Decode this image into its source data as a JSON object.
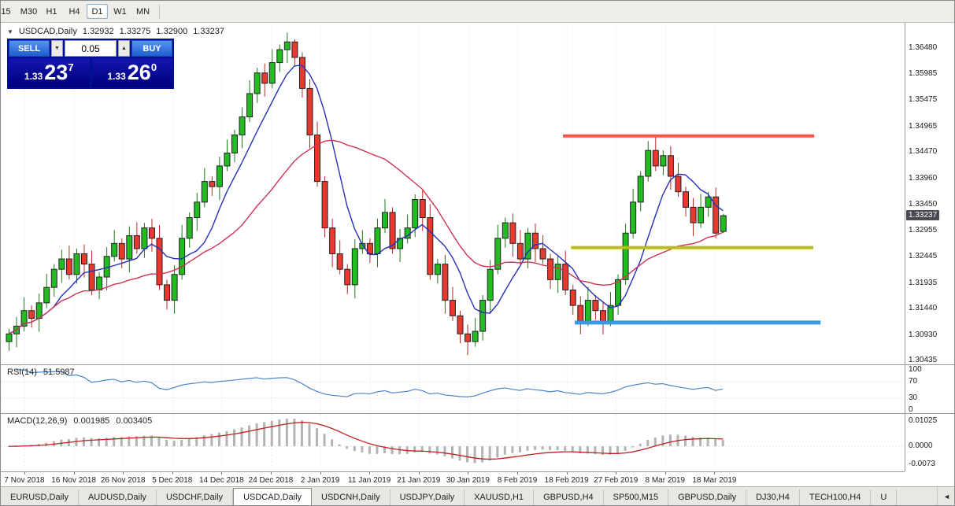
{
  "toolbar": {
    "timeframes": [
      {
        "label": "15",
        "active": false
      },
      {
        "label": "M30",
        "active": false
      },
      {
        "label": "H1",
        "active": false
      },
      {
        "label": "H4",
        "active": false
      },
      {
        "label": "D1",
        "active": true
      },
      {
        "label": "W1",
        "active": false
      },
      {
        "label": "MN",
        "active": false
      }
    ]
  },
  "icons": {
    "one_click_toggle": "▼",
    "spinner_down": "▼",
    "spinner_up": "▲",
    "tab_scroll_left": "◄"
  },
  "chart": {
    "header": {
      "title": "USDCAD,Daily",
      "open": "1.32932",
      "high": "1.33275",
      "low": "1.32900",
      "close": "1.33237"
    },
    "current_price": "1.33237",
    "trade_panel": {
      "sell_label": "SELL",
      "buy_label": "BUY",
      "volume": "0.05",
      "sell_price": {
        "prefix": "1.33",
        "big": "23",
        "sup": "7"
      },
      "buy_price": {
        "prefix": "1.33",
        "big": "26",
        "sup": "0"
      }
    }
  },
  "rsi": {
    "label": "RSI(14)",
    "value": "51.5987"
  },
  "macd": {
    "label": "MACD(12,26,9)",
    "value": "0.001985",
    "signal": "0.003405"
  },
  "tabs": [
    {
      "label": "EURUSD,Daily",
      "active": false
    },
    {
      "label": "AUDUSD,Daily",
      "active": false
    },
    {
      "label": "USDCHF,Daily",
      "active": false
    },
    {
      "label": "USDCAD,Daily",
      "active": true
    },
    {
      "label": "USDCNH,Daily",
      "active": false
    },
    {
      "label": "USDJPY,Daily",
      "active": false
    },
    {
      "label": "XAUUSD,H1",
      "active": false
    },
    {
      "label": "GBPUSD,H4",
      "active": false
    },
    {
      "label": "SP500,M15",
      "active": false
    },
    {
      "label": "GBPUSD,Daily",
      "active": false
    },
    {
      "label": "DJ30,H4",
      "active": false
    },
    {
      "label": "TECH100,H4",
      "active": false
    },
    {
      "label": "U",
      "active": false
    }
  ],
  "colors": {
    "candle_up": "#22bb22",
    "candle_down": "#e8392f",
    "candle_border": "#222222",
    "wick_up": "#1b7a1b",
    "wick_down": "#b32b22",
    "ma_fast": "#2430b8",
    "ma_slow": "#cc3355",
    "grid": "#e2e2e2",
    "level_dotted": "#cfcfcf",
    "rsi_line": "#4a86c8",
    "macd_hist": "#b3b3b3",
    "macd_signal": "#bb2222",
    "buy_sell_button": "#2a6de0",
    "price_panel": "#0a0a96",
    "price_tag_bg": "#4a4a52"
  },
  "chart_data": {
    "type": "candlestick",
    "symbol": "USDCAD",
    "timeframe": "Daily",
    "last_bar": {
      "open": 1.32932,
      "high": 1.33275,
      "low": 1.329,
      "close": 1.33237
    },
    "ylim": [
      1.3036,
      1.3697
    ],
    "y_tick_labels": [
      "1.36480",
      "1.35985",
      "1.35475",
      "1.34965",
      "1.34470",
      "1.33960",
      "1.33450",
      "1.32955",
      "1.32445",
      "1.31935",
      "1.31440",
      "1.30930",
      "1.30435"
    ],
    "x_tick_labels": [
      "7 Nov 2018",
      "16 Nov 2018",
      "26 Nov 2018",
      "5 Dec 2018",
      "14 Dec 2018",
      "24 Dec 2018",
      "2 Jan 2019",
      "11 Jan 2019",
      "21 Jan 2019",
      "30 Jan 2019",
      "8 Feb 2019",
      "18 Feb 2019",
      "27 Feb 2019",
      "8 Mar 2019",
      "18 Mar 2019"
    ],
    "ma_fast_period": 7,
    "ma_slow_period": 21,
    "hlines": [
      {
        "name": "resistance-line",
        "price": 1.3478,
        "color": "#f4564a",
        "width": 4,
        "x1": 0.622,
        "x2": 0.9
      },
      {
        "name": "mid-support-line",
        "price": 1.3262,
        "color": "#b9bd14",
        "width": 4,
        "x1": 0.631,
        "x2": 0.899
      },
      {
        "name": "support-line",
        "price": 1.3117,
        "color": "#3a9ae0",
        "width": 5,
        "x1": 0.635,
        "x2": 0.907
      }
    ],
    "rsi": {
      "period": 14,
      "value": 51.5987,
      "levels": [
        70,
        30
      ],
      "axis_labels": [
        "100",
        "70",
        "30",
        "0"
      ],
      "range": [
        0,
        100
      ]
    },
    "macd": {
      "fast": 12,
      "slow": 26,
      "signal_period": 9,
      "value": 0.001985,
      "signal_value": 0.003405,
      "axis_labels": [
        "0.01025",
        "0.0000",
        "-0.0073"
      ],
      "range": [
        -0.0073,
        0.01025
      ]
    },
    "ohlc": [
      [
        1.308,
        1.3105,
        1.3062,
        1.3095
      ],
      [
        1.3095,
        1.3128,
        1.3069,
        1.311
      ],
      [
        1.311,
        1.3166,
        1.31,
        1.314
      ],
      [
        1.314,
        1.315,
        1.3107,
        1.3125
      ],
      [
        1.3125,
        1.3173,
        1.3099,
        1.3155
      ],
      [
        1.3155,
        1.3211,
        1.3145,
        1.3185
      ],
      [
        1.3185,
        1.323,
        1.3167,
        1.322
      ],
      [
        1.322,
        1.3258,
        1.3194,
        1.324
      ],
      [
        1.324,
        1.3266,
        1.32,
        1.321
      ],
      [
        1.321,
        1.326,
        1.3192,
        1.325
      ],
      [
        1.325,
        1.3268,
        1.3204,
        1.323
      ],
      [
        1.323,
        1.3256,
        1.317,
        1.318
      ],
      [
        1.318,
        1.3215,
        1.3162,
        1.3205
      ],
      [
        1.3205,
        1.3263,
        1.3179,
        1.3245
      ],
      [
        1.3245,
        1.3296,
        1.3235,
        1.327
      ],
      [
        1.327,
        1.328,
        1.3222,
        1.324
      ],
      [
        1.324,
        1.3303,
        1.3214,
        1.3285
      ],
      [
        1.3285,
        1.3311,
        1.325,
        1.326
      ],
      [
        1.326,
        1.331,
        1.3242,
        1.33
      ],
      [
        1.33,
        1.3318,
        1.3254,
        1.328
      ],
      [
        1.328,
        1.3306,
        1.318,
        1.319
      ],
      [
        1.319,
        1.32,
        1.3142,
        1.316
      ],
      [
        1.316,
        1.3228,
        1.3134,
        1.321
      ],
      [
        1.321,
        1.3306,
        1.32,
        1.328
      ],
      [
        1.328,
        1.333,
        1.3262,
        1.332
      ],
      [
        1.332,
        1.3368,
        1.3294,
        1.335
      ],
      [
        1.335,
        1.3416,
        1.334,
        1.339
      ],
      [
        1.339,
        1.34,
        1.3362,
        1.338
      ],
      [
        1.338,
        1.3438,
        1.3354,
        1.342
      ],
      [
        1.342,
        1.3471,
        1.341,
        1.3445
      ],
      [
        1.3445,
        1.349,
        1.3427,
        1.348
      ],
      [
        1.348,
        1.3533,
        1.3454,
        1.3515
      ],
      [
        1.3515,
        1.3586,
        1.3505,
        1.356
      ],
      [
        1.356,
        1.361,
        1.3542,
        1.36
      ],
      [
        1.36,
        1.3618,
        1.3554,
        1.358
      ],
      [
        1.358,
        1.3646,
        1.357,
        1.362
      ],
      [
        1.362,
        1.3655,
        1.3602,
        1.3645
      ],
      [
        1.3645,
        1.3678,
        1.3619,
        1.366
      ],
      [
        1.366,
        1.3665,
        1.3615,
        1.363
      ],
      [
        1.363,
        1.364,
        1.3552,
        1.357
      ],
      [
        1.357,
        1.3588,
        1.3454,
        1.348
      ],
      [
        1.348,
        1.3506,
        1.338,
        1.339
      ],
      [
        1.339,
        1.34,
        1.3282,
        1.33
      ],
      [
        1.33,
        1.3318,
        1.3224,
        1.325
      ],
      [
        1.325,
        1.3276,
        1.321,
        1.322
      ],
      [
        1.322,
        1.323,
        1.3172,
        1.319
      ],
      [
        1.319,
        1.3278,
        1.3164,
        1.326
      ],
      [
        1.326,
        1.3296,
        1.325,
        1.327
      ],
      [
        1.327,
        1.328,
        1.3232,
        1.325
      ],
      [
        1.325,
        1.3318,
        1.3224,
        1.33
      ],
      [
        1.33,
        1.3356,
        1.329,
        1.333
      ],
      [
        1.333,
        1.334,
        1.325,
        1.326
      ],
      [
        1.326,
        1.3298,
        1.3234,
        1.328
      ],
      [
        1.328,
        1.3326,
        1.327,
        1.33
      ],
      [
        1.33,
        1.3365,
        1.3282,
        1.3355
      ],
      [
        1.3355,
        1.3373,
        1.3294,
        1.332
      ],
      [
        1.332,
        1.3346,
        1.32,
        1.321
      ],
      [
        1.321,
        1.324,
        1.3192,
        1.323
      ],
      [
        1.323,
        1.3248,
        1.3134,
        1.316
      ],
      [
        1.316,
        1.3186,
        1.312,
        1.313
      ],
      [
        1.313,
        1.314,
        1.3077,
        1.3095
      ],
      [
        1.3095,
        1.3113,
        1.3054,
        1.308
      ],
      [
        1.308,
        1.3126,
        1.307,
        1.31
      ],
      [
        1.31,
        1.317,
        1.3082,
        1.316
      ],
      [
        1.316,
        1.3238,
        1.3134,
        1.322
      ],
      [
        1.322,
        1.3306,
        1.321,
        1.328
      ],
      [
        1.328,
        1.332,
        1.3262,
        1.331
      ],
      [
        1.331,
        1.3328,
        1.3244,
        1.327
      ],
      [
        1.327,
        1.3296,
        1.323,
        1.324
      ],
      [
        1.324,
        1.33,
        1.3222,
        1.329
      ],
      [
        1.329,
        1.3308,
        1.3234,
        1.326
      ],
      [
        1.326,
        1.3286,
        1.323,
        1.324
      ],
      [
        1.324,
        1.325,
        1.3182,
        1.32
      ],
      [
        1.32,
        1.3248,
        1.3174,
        1.323
      ],
      [
        1.323,
        1.3256,
        1.317,
        1.318
      ],
      [
        1.318,
        1.319,
        1.3132,
        1.315
      ],
      [
        1.315,
        1.3168,
        1.3094,
        1.312
      ],
      [
        1.312,
        1.3186,
        1.311,
        1.316
      ],
      [
        1.316,
        1.317,
        1.3122,
        1.314
      ],
      [
        1.314,
        1.3158,
        1.3094,
        1.312
      ],
      [
        1.312,
        1.3176,
        1.311,
        1.315
      ],
      [
        1.315,
        1.321,
        1.3132,
        1.32
      ],
      [
        1.32,
        1.3308,
        1.319,
        1.329
      ],
      [
        1.329,
        1.3376,
        1.328,
        1.335
      ],
      [
        1.335,
        1.341,
        1.3332,
        1.34
      ],
      [
        1.34,
        1.3468,
        1.339,
        1.345
      ],
      [
        1.345,
        1.3476,
        1.341,
        1.342
      ],
      [
        1.342,
        1.345,
        1.3402,
        1.344
      ],
      [
        1.344,
        1.3458,
        1.3374,
        1.34
      ],
      [
        1.34,
        1.3426,
        1.336,
        1.337
      ],
      [
        1.337,
        1.338,
        1.3322,
        1.334
      ],
      [
        1.334,
        1.3358,
        1.3284,
        1.331
      ],
      [
        1.331,
        1.3366,
        1.33,
        1.334
      ],
      [
        1.334,
        1.337,
        1.3322,
        1.336
      ],
      [
        1.336,
        1.3378,
        1.328,
        1.329
      ],
      [
        1.32932,
        1.33275,
        1.329,
        1.33237
      ]
    ]
  }
}
